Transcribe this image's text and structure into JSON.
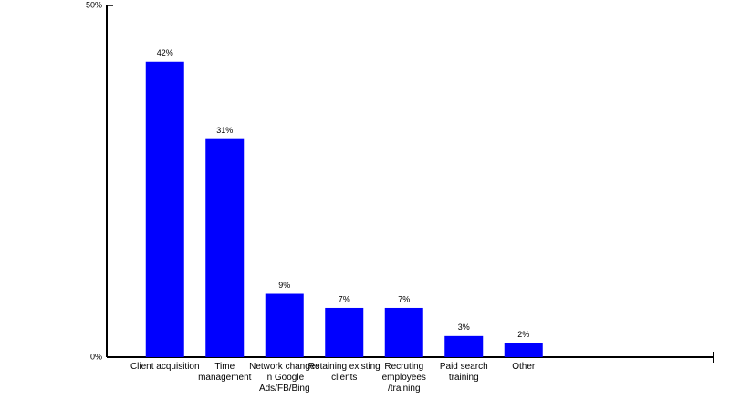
{
  "chart_data": {
    "type": "bar",
    "categories": [
      "Client acquisition",
      "Time management",
      "Network changes in Google Ads/FB/Bing",
      "Retaining existing clients",
      "Recruting employees /training",
      "Paid search training",
      "Other"
    ],
    "values": [
      42,
      31,
      9,
      7,
      7,
      3,
      2
    ],
    "value_labels": [
      "42%",
      "31%",
      "9%",
      "7%",
      "7%",
      "3%",
      "2%"
    ],
    "color": "#0000ff",
    "ylim": [
      0,
      50
    ],
    "yticks": [
      {
        "value": 0,
        "label": "0%"
      },
      {
        "value": 50,
        "label": "50%"
      }
    ],
    "grid": false
  }
}
